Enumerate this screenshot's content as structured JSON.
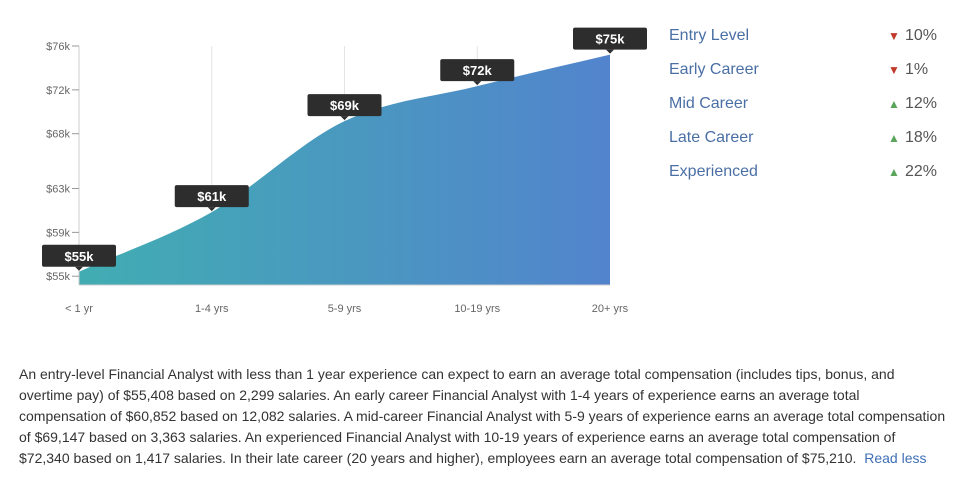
{
  "chart_data": {
    "type": "area",
    "categories": [
      "< 1 yr",
      "1-4 yrs",
      "5-9 yrs",
      "10-19 yrs",
      "20+ yrs"
    ],
    "values": [
      55408,
      60852,
      69147,
      72340,
      75210
    ],
    "data_labels": [
      "$55k",
      "$61k",
      "$69k",
      "$72k",
      "$75k"
    ],
    "y_ticks": [
      {
        "value": 55000,
        "label": "$55k"
      },
      {
        "value": 59000,
        "label": "$59k"
      },
      {
        "value": 63000,
        "label": "$63k"
      },
      {
        "value": 68000,
        "label": "$68k"
      },
      {
        "value": 72000,
        "label": "$72k"
      },
      {
        "value": 76000,
        "label": "$76k"
      }
    ],
    "ylim": [
      54200,
      76000
    ],
    "grid": "vertical",
    "title": "",
    "xlabel": "",
    "ylabel": "",
    "colors": {
      "gradient_start": "#41adb2",
      "gradient_end": "#5284cd",
      "label_bg": "#2d2d2d"
    }
  },
  "legend": {
    "items": [
      {
        "name": "Entry Level",
        "direction": "down",
        "change": "10%"
      },
      {
        "name": "Early Career",
        "direction": "down",
        "change": "1%"
      },
      {
        "name": "Mid Career",
        "direction": "up",
        "change": "12%"
      },
      {
        "name": "Late Career",
        "direction": "up",
        "change": "18%"
      },
      {
        "name": "Experienced",
        "direction": "up",
        "change": "22%"
      }
    ],
    "colors": {
      "down": "#c0392b",
      "up": "#5aa55a",
      "name": "#4a6fa5"
    }
  },
  "summary": {
    "text": "An entry-level Financial Analyst with less than 1 year experience can expect to earn an average total compensation (includes tips, bonus, and overtime pay) of $55,408 based on 2,299 salaries. An early career Financial Analyst with 1-4 years of experience earns an average total compensation of $60,852 based on 12,082 salaries. A mid-career Financial Analyst with 5-9 years of experience earns an average total compensation of $69,147 based on 3,363 salaries. An experienced Financial Analyst with 10-19 years of experience earns an average total compensation of $72,340 based on 1,417 salaries. In their late career (20 years and higher), employees earn an average total compensation of $75,210.",
    "read_less": "Read less"
  }
}
